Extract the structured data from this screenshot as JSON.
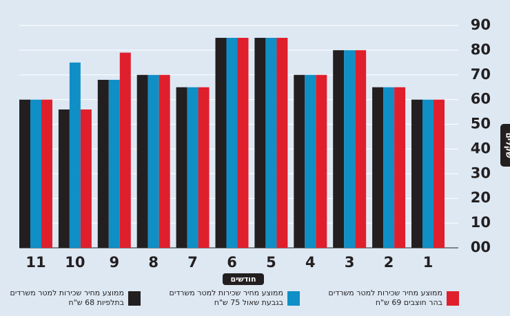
{
  "chart_data": {
    "type": "bar",
    "categories": [
      "1",
      "2",
      "3",
      "4",
      "5",
      "6",
      "7",
      "8",
      "9",
      "10",
      "11"
    ],
    "series": [
      {
        "name": "ממוצע מחיר שכירות למטר משרדים בתלפיות 68 ש\"ח",
        "color": "#231f20",
        "values": [
          60,
          65,
          80,
          70,
          85,
          85,
          65,
          70,
          68,
          56,
          60
        ]
      },
      {
        "name": "ממוצע מחיר שכירות למטר משרדים בגבעת שאול 75 ש\"ח",
        "color": "#0f8fc6",
        "values": [
          60,
          65,
          80,
          70,
          85,
          85,
          65,
          70,
          68,
          75,
          60
        ]
      },
      {
        "name": "ממוצע מחיר שכירות למטר משרדים בהר חוצבים 69 ש\"ח",
        "color": "#e01f2d",
        "values": [
          60,
          65,
          80,
          70,
          85,
          85,
          65,
          70,
          79,
          56,
          60
        ]
      }
    ],
    "ylabel": "שקלים",
    "xlabel": "חודשים",
    "ylim": [
      0,
      90
    ],
    "yticks": [
      {
        "value": 0,
        "label": "00"
      },
      10,
      20,
      30,
      40,
      50,
      60,
      70,
      80,
      90
    ],
    "grid": true
  }
}
